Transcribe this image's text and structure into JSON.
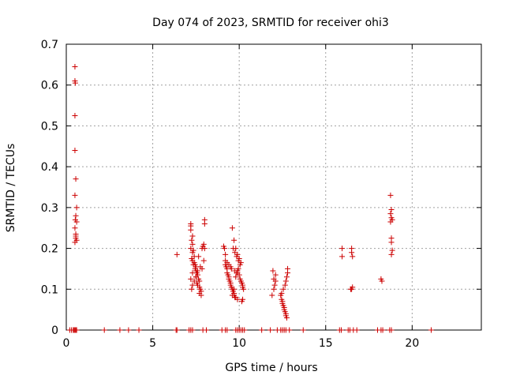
{
  "chart_data": {
    "type": "scatter",
    "title": "Day 074 of 2023, SRMTID for receiver ohi3",
    "xlabel": "GPS time / hours",
    "ylabel": "SRMTID / TECUs",
    "xlim": [
      0,
      24
    ],
    "ylim": [
      0,
      0.7
    ],
    "x_ticks": [
      0,
      5,
      10,
      15,
      20
    ],
    "y_ticks": [
      0,
      0.1,
      0.2,
      0.3,
      0.4,
      0.5,
      0.6,
      0.7
    ],
    "x_tick_labels": [
      "0",
      "5",
      "10",
      "15",
      "20"
    ],
    "y_tick_labels": [
      "0",
      "0.1",
      "0.2",
      "0.3",
      "0.4",
      "0.5",
      "0.6",
      "0.7"
    ],
    "grid": true,
    "marker": "+",
    "marker_color": "#cc0000",
    "series": [
      {
        "name": "SRMTID",
        "x": [
          0.5,
          0.5,
          0.52,
          0.5,
          0.5,
          0.55,
          0.5,
          0.6,
          0.55,
          0.52,
          0.6,
          0.5,
          0.55,
          0.55,
          0.6,
          0.5,
          0.55,
          6.4,
          7.2,
          7.2,
          7.2,
          7.3,
          7.25,
          7.3,
          7.2,
          7.35,
          7.3,
          7.4,
          7.25,
          7.3,
          7.4,
          7.35,
          7.5,
          7.45,
          7.5,
          7.55,
          7.6,
          7.5,
          7.65,
          7.7,
          7.55,
          7.6,
          7.7,
          7.75,
          7.8,
          7.7,
          7.8,
          7.85,
          7.9,
          7.95,
          7.75,
          7.6,
          7.5,
          7.4,
          7.3,
          7.25,
          7.2,
          7.3,
          7.45,
          7.65,
          7.85,
          8.0,
          8.0,
          8.0,
          7.95,
          9.1,
          9.15,
          9.2,
          9.2,
          9.25,
          9.3,
          9.3,
          9.35,
          9.4,
          9.4,
          9.45,
          9.5,
          9.5,
          9.55,
          9.6,
          9.65,
          9.7,
          9.7,
          9.75,
          9.8,
          9.85,
          9.9,
          9.95,
          10.0,
          10.05,
          10.1,
          10.15,
          10.2,
          10.2,
          10.25,
          9.6,
          9.7,
          9.8,
          9.9,
          10.0,
          10.1,
          9.65,
          9.75,
          9.85,
          9.95,
          10.05,
          9.2,
          9.3,
          9.4,
          9.5,
          9.55,
          9.75,
          9.9,
          10.15,
          10.2,
          9.7,
          9.7,
          9.6,
          9.8,
          9.9,
          11.9,
          12.0,
          12.05,
          12.1,
          12.0,
          12.1,
          11.95,
          12.4,
          12.45,
          12.5,
          12.5,
          12.55,
          12.6,
          12.6,
          12.65,
          12.7,
          12.7,
          12.75,
          12.8,
          12.8,
          12.75,
          12.7,
          12.65,
          12.55,
          12.45,
          15.95,
          15.95,
          16.5,
          16.5,
          16.55,
          16.55,
          16.5,
          16.45,
          18.2,
          18.25,
          18.75,
          18.8,
          18.75,
          18.8,
          18.85,
          18.75,
          18.8,
          18.8,
          18.85,
          18.8
        ],
        "y": [
          0.645,
          0.61,
          0.605,
          0.525,
          0.44,
          0.37,
          0.33,
          0.3,
          0.28,
          0.27,
          0.265,
          0.25,
          0.235,
          0.225,
          0.22,
          0.215,
          0.23,
          0.185,
          0.26,
          0.255,
          0.245,
          0.23,
          0.22,
          0.21,
          0.2,
          0.195,
          0.19,
          0.18,
          0.175,
          0.17,
          0.165,
          0.16,
          0.155,
          0.15,
          0.145,
          0.14,
          0.135,
          0.13,
          0.125,
          0.12,
          0.115,
          0.11,
          0.105,
          0.1,
          0.095,
          0.09,
          0.085,
          0.2,
          0.205,
          0.17,
          0.155,
          0.145,
          0.13,
          0.12,
          0.11,
          0.1,
          0.125,
          0.14,
          0.16,
          0.18,
          0.15,
          0.27,
          0.26,
          0.2,
          0.21,
          0.205,
          0.2,
          0.185,
          0.16,
          0.155,
          0.15,
          0.14,
          0.135,
          0.13,
          0.125,
          0.12,
          0.115,
          0.11,
          0.105,
          0.1,
          0.095,
          0.09,
          0.085,
          0.08,
          0.13,
          0.14,
          0.145,
          0.15,
          0.135,
          0.125,
          0.12,
          0.115,
          0.11,
          0.105,
          0.1,
          0.25,
          0.22,
          0.2,
          0.185,
          0.175,
          0.165,
          0.2,
          0.19,
          0.18,
          0.17,
          0.16,
          0.17,
          0.165,
          0.16,
          0.155,
          0.15,
          0.145,
          0.14,
          0.07,
          0.075,
          0.09,
          0.1,
          0.085,
          0.08,
          0.075,
          0.085,
          0.1,
          0.11,
          0.12,
          0.125,
          0.135,
          0.145,
          0.085,
          0.075,
          0.07,
          0.065,
          0.06,
          0.055,
          0.05,
          0.045,
          0.04,
          0.035,
          0.03,
          0.15,
          0.14,
          0.13,
          0.12,
          0.11,
          0.1,
          0.09,
          0.2,
          0.18,
          0.2,
          0.19,
          0.18,
          0.105,
          0.1,
          0.1,
          0.125,
          0.12,
          0.33,
          0.295,
          0.285,
          0.275,
          0.27,
          0.265,
          0.225,
          0.215,
          0.195,
          0.185
        ],
        "zero_x": [
          0.2,
          0.3,
          0.4,
          0.45,
          0.5,
          0.55,
          0.6,
          2.2,
          3.1,
          3.6,
          4.2,
          6.35,
          6.4,
          7.1,
          7.2,
          7.3,
          7.9,
          8.1,
          9.0,
          9.2,
          9.3,
          9.8,
          9.9,
          10.0,
          10.1,
          10.2,
          10.3,
          11.3,
          11.8,
          12.2,
          12.4,
          12.5,
          12.6,
          12.7,
          12.9,
          13.7,
          15.8,
          15.9,
          16.3,
          16.4,
          16.6,
          16.8,
          18.0,
          18.2,
          18.3,
          18.7,
          18.8,
          21.1
        ]
      }
    ]
  }
}
